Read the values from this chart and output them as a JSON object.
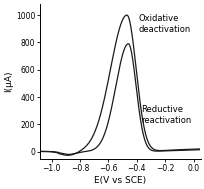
{
  "title": "",
  "xlabel": "E(V vs SCE)",
  "ylabel": "I(μA)",
  "xlim": [
    -1.08,
    0.05
  ],
  "ylim": [
    -55,
    1080
  ],
  "xticks": [
    -1.0,
    -0.8,
    -0.6,
    -0.4,
    -0.2,
    0.0
  ],
  "yticks": [
    0,
    200,
    400,
    600,
    800,
    1000
  ],
  "label_oxidative": "Oxidative\ndeactivation",
  "label_reductive": "Reductive\nreactivation",
  "line_color": "#1a1a1a",
  "background_color": "#ffffff",
  "font_size": 6.0
}
